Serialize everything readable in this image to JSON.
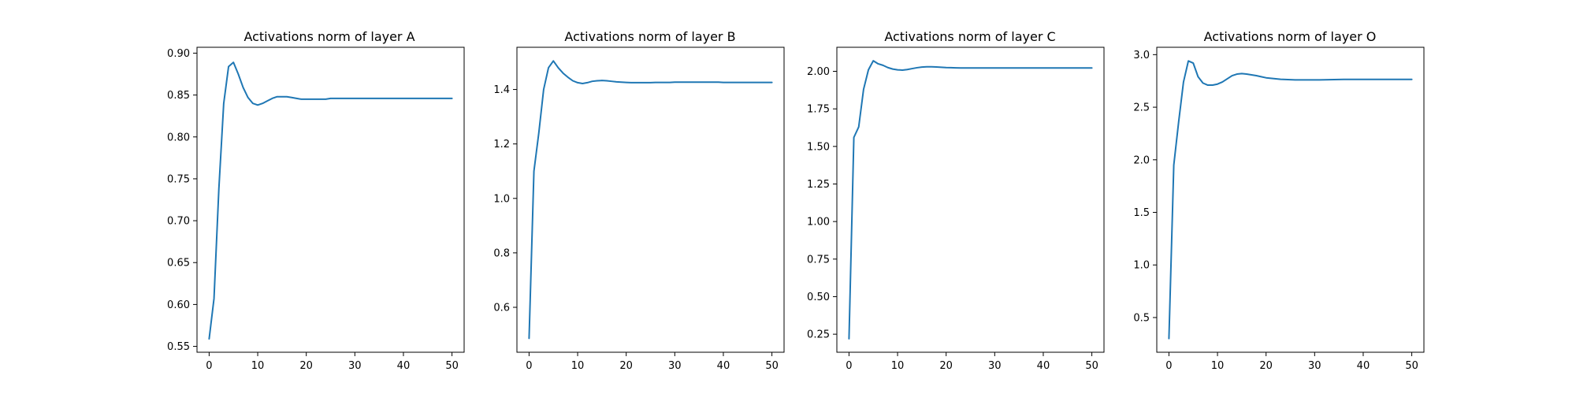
{
  "chart_data": [
    {
      "type": "line",
      "title": "Activations norm of layer A",
      "xlabel": "",
      "ylabel": "",
      "xlim": [
        -2.5,
        52.5
      ],
      "ylim": [
        0.543,
        0.907
      ],
      "xticks": [
        0,
        10,
        20,
        30,
        40,
        50
      ],
      "xtick_labels": [
        "0",
        "10",
        "20",
        "30",
        "40",
        "50"
      ],
      "yticks": [
        0.55,
        0.6,
        0.65,
        0.7,
        0.75,
        0.8,
        0.85,
        0.9
      ],
      "ytick_labels": [
        "0.55",
        "0.60",
        "0.65",
        "0.70",
        "0.75",
        "0.80",
        "0.85",
        "0.90"
      ],
      "grid": false,
      "color": "#1f77b4",
      "series": [
        {
          "x": [
            0,
            1,
            2,
            3,
            4,
            5,
            6,
            7,
            8,
            9,
            10,
            11,
            12,
            13,
            14,
            15,
            16,
            17,
            18,
            19,
            20,
            21,
            22,
            23,
            24,
            25,
            26,
            27,
            28,
            29,
            30,
            31,
            32,
            33,
            34,
            35,
            36,
            37,
            38,
            39,
            40,
            41,
            42,
            43,
            44,
            45,
            46,
            47,
            48,
            49,
            50
          ],
          "values": [
            0.559,
            0.607,
            0.738,
            0.84,
            0.884,
            0.889,
            0.875,
            0.859,
            0.847,
            0.84,
            0.838,
            0.84,
            0.843,
            0.846,
            0.848,
            0.848,
            0.848,
            0.847,
            0.846,
            0.845,
            0.845,
            0.845,
            0.845,
            0.845,
            0.845,
            0.846,
            0.846,
            0.846,
            0.846,
            0.846,
            0.846,
            0.846,
            0.846,
            0.846,
            0.846,
            0.846,
            0.846,
            0.846,
            0.846,
            0.846,
            0.846,
            0.846,
            0.846,
            0.846,
            0.846,
            0.846,
            0.846,
            0.846,
            0.846,
            0.846,
            0.846
          ]
        }
      ]
    },
    {
      "type": "line",
      "title": "Activations norm of layer B",
      "xlabel": "",
      "ylabel": "",
      "xlim": [
        -2.5,
        52.5
      ],
      "ylim": [
        0.435,
        1.555
      ],
      "xticks": [
        0,
        10,
        20,
        30,
        40,
        50
      ],
      "xtick_labels": [
        "0",
        "10",
        "20",
        "30",
        "40",
        "50"
      ],
      "yticks": [
        0.6,
        0.8,
        1.0,
        1.2,
        1.4
      ],
      "ytick_labels": [
        "0.6",
        "0.8",
        "1.0",
        "1.2",
        "1.4"
      ],
      "grid": false,
      "color": "#1f77b4",
      "series": [
        {
          "x": [
            0,
            1,
            2,
            3,
            4,
            5,
            6,
            7,
            8,
            9,
            10,
            11,
            12,
            13,
            14,
            15,
            16,
            17,
            18,
            19,
            20,
            21,
            22,
            23,
            24,
            25,
            26,
            27,
            28,
            29,
            30,
            31,
            32,
            33,
            34,
            35,
            36,
            37,
            38,
            39,
            40,
            41,
            42,
            43,
            44,
            45,
            46,
            47,
            48,
            49,
            50
          ],
          "values": [
            0.486,
            1.1,
            1.24,
            1.4,
            1.48,
            1.505,
            1.48,
            1.46,
            1.445,
            1.432,
            1.425,
            1.422,
            1.425,
            1.43,
            1.432,
            1.433,
            1.432,
            1.43,
            1.428,
            1.427,
            1.426,
            1.425,
            1.425,
            1.425,
            1.425,
            1.425,
            1.426,
            1.426,
            1.426,
            1.426,
            1.427,
            1.427,
            1.427,
            1.427,
            1.427,
            1.427,
            1.427,
            1.427,
            1.427,
            1.427,
            1.426,
            1.426,
            1.426,
            1.426,
            1.426,
            1.426,
            1.426,
            1.426,
            1.426,
            1.426,
            1.426
          ]
        }
      ]
    },
    {
      "type": "line",
      "title": "Activations norm of layer C",
      "xlabel": "",
      "ylabel": "",
      "xlim": [
        -2.5,
        52.5
      ],
      "ylim": [
        0.13,
        2.16
      ],
      "xticks": [
        0,
        10,
        20,
        30,
        40,
        50
      ],
      "xtick_labels": [
        "0",
        "10",
        "20",
        "30",
        "40",
        "50"
      ],
      "yticks": [
        0.25,
        0.5,
        0.75,
        1.0,
        1.25,
        1.5,
        1.75,
        2.0
      ],
      "ytick_labels": [
        "0.25",
        "0.50",
        "0.75",
        "1.00",
        "1.25",
        "1.50",
        "1.75",
        "2.00"
      ],
      "grid": false,
      "color": "#1f77b4",
      "series": [
        {
          "x": [
            0,
            1,
            2,
            3,
            4,
            5,
            6,
            7,
            8,
            9,
            10,
            11,
            12,
            13,
            14,
            15,
            16,
            17,
            18,
            19,
            20,
            21,
            22,
            23,
            24,
            25,
            26,
            27,
            28,
            29,
            30,
            31,
            32,
            33,
            34,
            35,
            36,
            37,
            38,
            39,
            40,
            41,
            42,
            43,
            44,
            45,
            46,
            47,
            48,
            49,
            50
          ],
          "values": [
            0.22,
            1.56,
            1.63,
            1.88,
            2.01,
            2.07,
            2.05,
            2.04,
            2.025,
            2.015,
            2.01,
            2.008,
            2.012,
            2.018,
            2.024,
            2.028,
            2.03,
            2.03,
            2.029,
            2.027,
            2.025,
            2.024,
            2.023,
            2.022,
            2.022,
            2.022,
            2.022,
            2.022,
            2.022,
            2.022,
            2.022,
            2.022,
            2.022,
            2.022,
            2.022,
            2.022,
            2.022,
            2.022,
            2.022,
            2.022,
            2.022,
            2.022,
            2.022,
            2.022,
            2.022,
            2.022,
            2.022,
            2.022,
            2.022,
            2.022,
            2.022
          ]
        }
      ]
    },
    {
      "type": "line",
      "title": "Activations norm of layer O",
      "xlabel": "",
      "ylabel": "",
      "xlim": [
        -2.5,
        52.5
      ],
      "ylim": [
        0.17,
        3.07
      ],
      "xticks": [
        0,
        10,
        20,
        30,
        40,
        50
      ],
      "xtick_labels": [
        "0",
        "10",
        "20",
        "30",
        "40",
        "50"
      ],
      "yticks": [
        0.5,
        1.0,
        1.5,
        2.0,
        2.5,
        3.0
      ],
      "ytick_labels": [
        "0.5",
        "1.0",
        "1.5",
        "2.0",
        "2.5",
        "3.0"
      ],
      "grid": false,
      "color": "#1f77b4",
      "series": [
        {
          "x": [
            0,
            1,
            2,
            3,
            4,
            5,
            6,
            7,
            8,
            9,
            10,
            11,
            12,
            13,
            14,
            15,
            16,
            17,
            18,
            19,
            20,
            21,
            22,
            23,
            24,
            25,
            26,
            27,
            28,
            29,
            30,
            31,
            32,
            33,
            34,
            35,
            36,
            37,
            38,
            39,
            40,
            41,
            42,
            43,
            44,
            45,
            46,
            47,
            48,
            49,
            50
          ],
          "values": [
            0.3,
            1.95,
            2.36,
            2.74,
            2.94,
            2.92,
            2.79,
            2.73,
            2.71,
            2.71,
            2.72,
            2.74,
            2.77,
            2.8,
            2.815,
            2.82,
            2.815,
            2.808,
            2.8,
            2.79,
            2.78,
            2.775,
            2.77,
            2.766,
            2.764,
            2.762,
            2.76,
            2.76,
            2.76,
            2.76,
            2.76,
            2.76,
            2.761,
            2.762,
            2.763,
            2.764,
            2.765,
            2.765,
            2.765,
            2.765,
            2.765,
            2.765,
            2.765,
            2.765,
            2.765,
            2.765,
            2.765,
            2.765,
            2.765,
            2.765,
            2.765
          ]
        }
      ]
    }
  ]
}
